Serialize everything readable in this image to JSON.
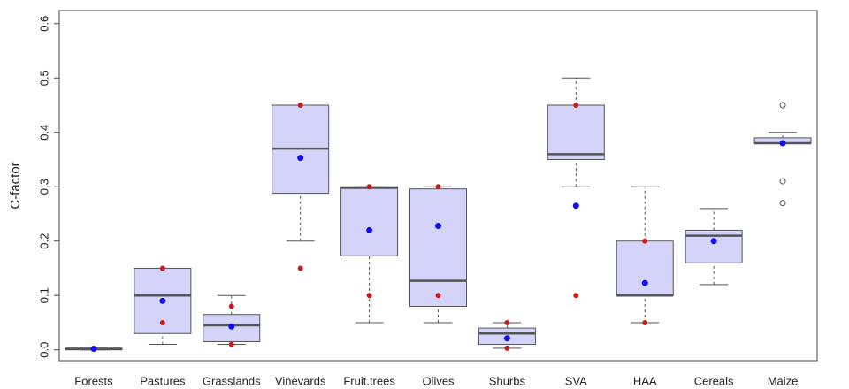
{
  "chart_data": {
    "type": "box",
    "y_label": "C-factor",
    "categories": [
      "Forests",
      "Pastures",
      "Grasslands",
      "Vinevards",
      "Fruit.trees",
      "Olives",
      "Shurbs",
      "SVA",
      "HAA",
      "Cereals",
      "Maize"
    ],
    "box_color": "#d4d4fa",
    "mean_color": "#1010ee",
    "point_color": "#cc1a1a",
    "boxes": [
      {
        "low": 0.0,
        "q1": 0.0,
        "median": 0.002,
        "q3": 0.003,
        "high": 0.005,
        "mean": 0.002
      },
      {
        "low": 0.01,
        "q1": 0.03,
        "median": 0.1,
        "q3": 0.15,
        "high": 0.15,
        "mean": 0.09,
        "points": [
          0.15,
          0.05
        ]
      },
      {
        "low": 0.01,
        "q1": 0.015,
        "median": 0.045,
        "q3": 0.065,
        "high": 0.1,
        "mean": 0.043,
        "points": [
          0.08,
          0.01
        ]
      },
      {
        "low": 0.2,
        "q1": 0.288,
        "median": 0.37,
        "q3": 0.45,
        "high": 0.45,
        "mean": 0.353,
        "points": [
          0.45,
          0.15
        ]
      },
      {
        "low": 0.05,
        "q1": 0.173,
        "median": 0.298,
        "q3": 0.3,
        "high": 0.3,
        "mean": 0.22,
        "points": [
          0.3,
          0.1
        ]
      },
      {
        "low": 0.05,
        "q1": 0.08,
        "median": 0.127,
        "q3": 0.296,
        "high": 0.3,
        "mean": 0.228,
        "points": [
          0.3,
          0.1
        ]
      },
      {
        "low": 0.003,
        "q1": 0.01,
        "median": 0.03,
        "q3": 0.04,
        "high": 0.05,
        "mean": 0.021,
        "points": [
          0.05,
          0.003
        ]
      },
      {
        "low": 0.3,
        "q1": 0.35,
        "median": 0.36,
        "q3": 0.45,
        "high": 0.5,
        "mean": 0.265,
        "points": [
          0.45,
          0.1
        ]
      },
      {
        "low": 0.05,
        "q1": 0.1,
        "median": 0.1,
        "q3": 0.2,
        "high": 0.3,
        "mean": 0.123,
        "points": [
          0.2,
          0.05
        ]
      },
      {
        "low": 0.12,
        "q1": 0.16,
        "median": 0.21,
        "q3": 0.22,
        "high": 0.26,
        "mean": 0.2
      },
      {
        "low": 0.38,
        "q1": 0.38,
        "median": 0.38,
        "q3": 0.39,
        "high": 0.4,
        "mean": 0.38,
        "outliers": [
          0.45,
          0.31,
          0.27
        ]
      }
    ],
    "ylim": [
      -0.02,
      0.624
    ],
    "yticks": [
      {
        "value": 0,
        "label": "0.0"
      },
      0.1,
      0.2,
      0.3,
      0.4,
      0.5,
      0.6
    ]
  }
}
